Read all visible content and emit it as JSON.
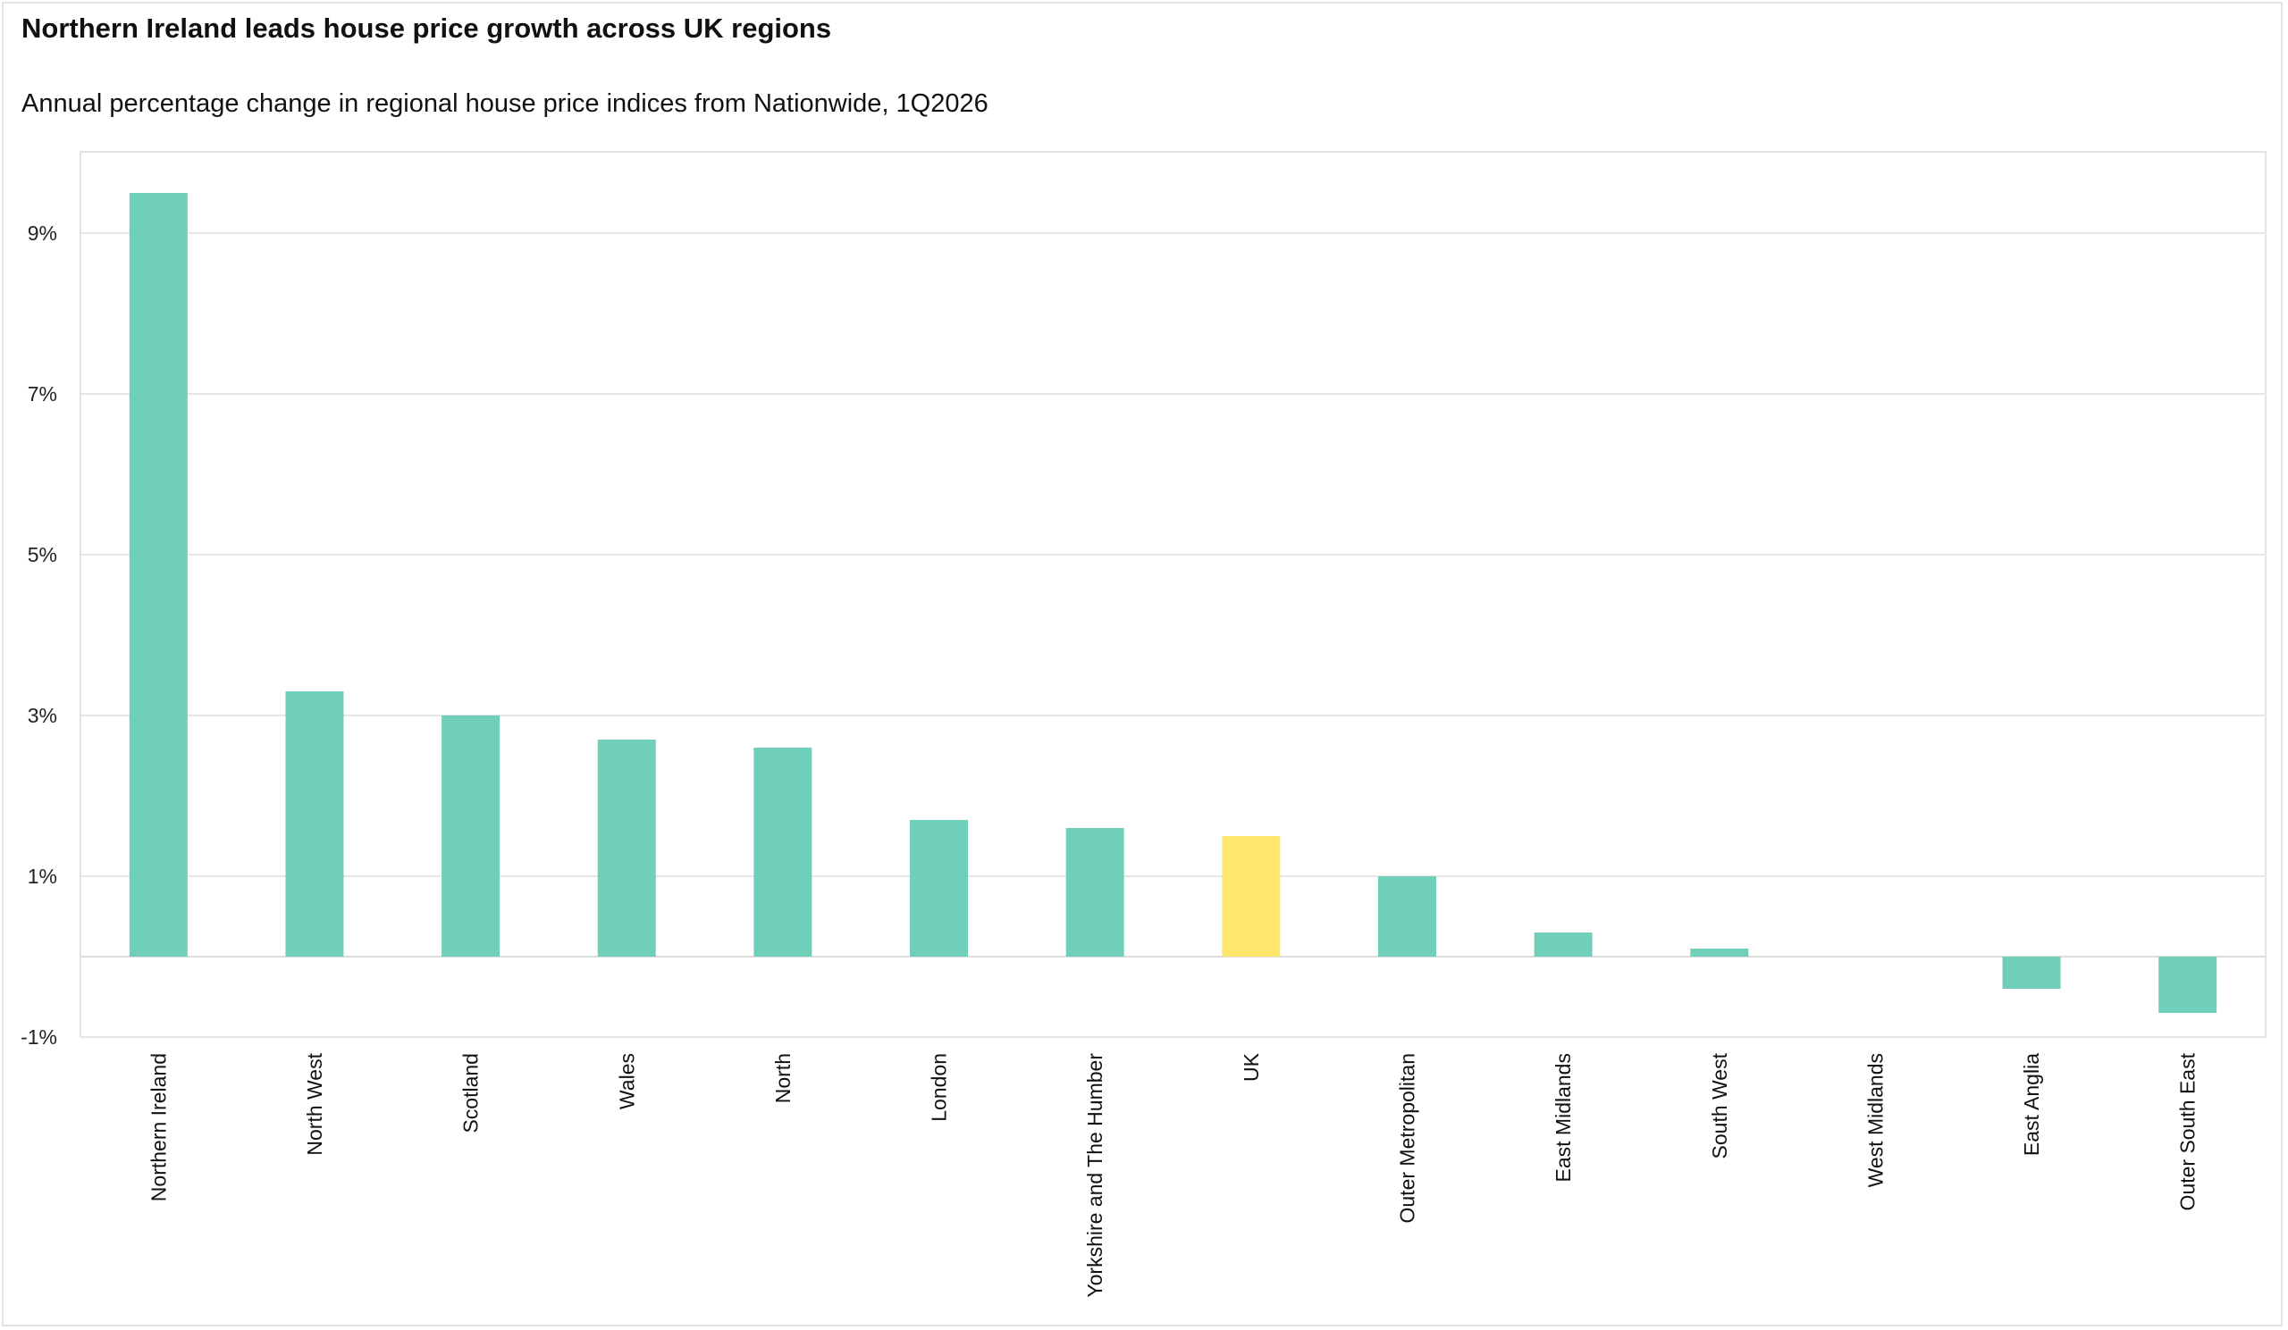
{
  "chart_data": {
    "type": "bar",
    "title": "Northern Ireland leads house price growth across UK regions",
    "subtitle": "Annual percentage change in regional house price indices from Nationwide, 1Q2026",
    "xlabel": "",
    "ylabel": "",
    "categories": [
      "Northern Ireland",
      "North West",
      "Scotland",
      "Wales",
      "North",
      "London",
      "Yorkshire and The Humber",
      "UK",
      "Outer Metropolitan",
      "East Midlands",
      "South West",
      "West Midlands",
      "East Anglia",
      "Outer South East"
    ],
    "values": [
      9.5,
      3.3,
      3.0,
      2.7,
      2.6,
      1.7,
      1.6,
      1.5,
      1.0,
      0.3,
      0.1,
      0.0,
      -0.4,
      -0.7
    ],
    "highlight_category": "UK",
    "ylim": [
      -1,
      10
    ],
    "yticks": [
      -1,
      1,
      3,
      5,
      7,
      9
    ],
    "ytick_labels": [
      "-1%",
      "1%",
      "3%",
      "5%",
      "7%",
      "9%"
    ],
    "grid": true,
    "legend": "none",
    "colors": {
      "bar": "#6fcfb8",
      "highlight": "#ffe66d",
      "grid": "#e6e6e6"
    }
  }
}
